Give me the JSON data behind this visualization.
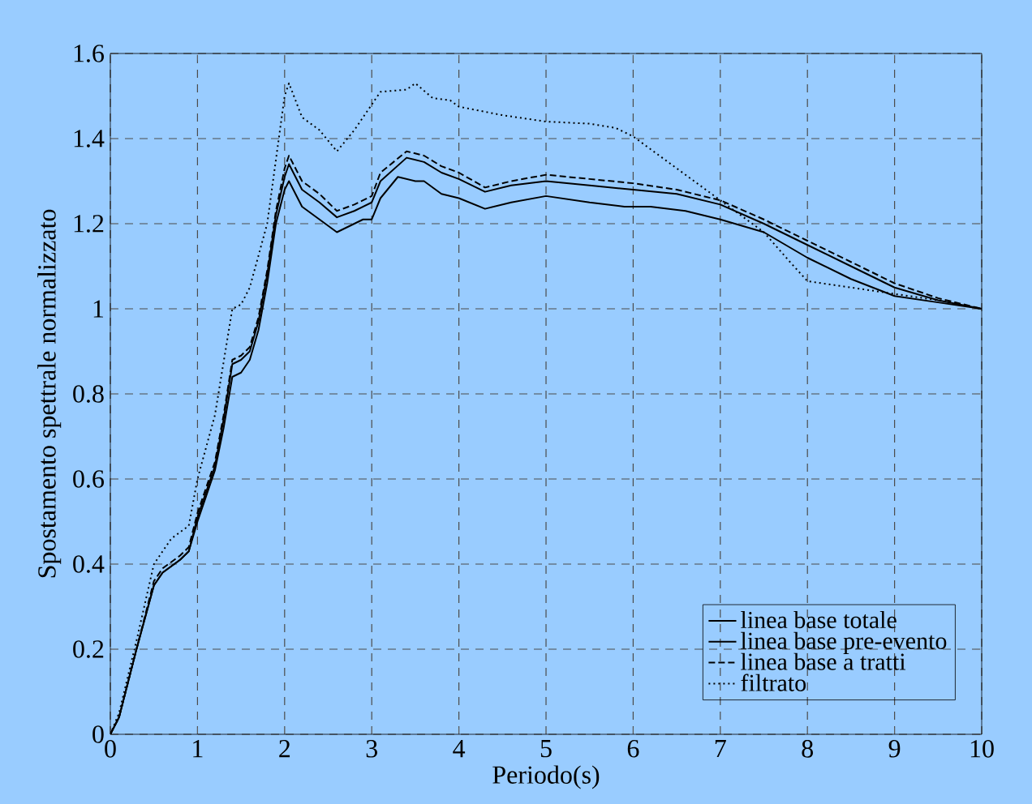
{
  "chart_data": {
    "type": "line",
    "xlabel": "Periodo(s)",
    "ylabel": "Spostamento  spettrale normalizzato",
    "xlim": [
      0,
      10
    ],
    "ylim": [
      0,
      1.6
    ],
    "xticks": [
      0,
      1,
      2,
      3,
      4,
      5,
      6,
      7,
      8,
      9,
      10
    ],
    "yticks": [
      0,
      0.2,
      0.4,
      0.6,
      0.8,
      1,
      1.2,
      1.4,
      1.6
    ],
    "grid": true,
    "legend": "bottom right",
    "marker": "none",
    "series": [
      {
        "name": "linea base totale",
        "color": "#000000",
        "line_style": "solid",
        "x": [
          0,
          0.1,
          0.2,
          0.3,
          0.5,
          0.6,
          0.8,
          0.9,
          1.0,
          1.2,
          1.3,
          1.4,
          1.5,
          1.6,
          1.7,
          1.8,
          1.9,
          2.0,
          2.05,
          2.1,
          2.2,
          2.4,
          2.6,
          2.8,
          3.0,
          3.1,
          3.4,
          3.6,
          3.8,
          4.0,
          4.3,
          4.6,
          5.0,
          5.5,
          6.0,
          6.5,
          7.0,
          7.5,
          8.0,
          8.5,
          9.0,
          9.5,
          10
        ],
        "values": [
          0,
          0.04,
          0.12,
          0.2,
          0.35,
          0.38,
          0.41,
          0.43,
          0.51,
          0.63,
          0.74,
          0.87,
          0.88,
          0.9,
          0.97,
          1.08,
          1.22,
          1.31,
          1.34,
          1.32,
          1.28,
          1.25,
          1.215,
          1.23,
          1.25,
          1.3,
          1.355,
          1.345,
          1.32,
          1.305,
          1.275,
          1.29,
          1.3,
          1.29,
          1.28,
          1.27,
          1.245,
          1.2,
          1.15,
          1.1,
          1.05,
          1.02,
          1.0
        ]
      },
      {
        "name": "linea base pre-evento",
        "color": "#000000",
        "line_style": "solid",
        "x": [
          0,
          0.1,
          0.2,
          0.3,
          0.5,
          0.6,
          0.8,
          0.9,
          1.0,
          1.2,
          1.3,
          1.4,
          1.5,
          1.6,
          1.7,
          1.8,
          1.9,
          2.0,
          2.05,
          2.1,
          2.2,
          2.4,
          2.6,
          2.7,
          2.9,
          3.0,
          3.1,
          3.3,
          3.5,
          3.6,
          3.8,
          4.0,
          4.3,
          4.6,
          5.0,
          5.5,
          5.9,
          6.2,
          6.6,
          7.0,
          7.5,
          8.0,
          8.5,
          9.0,
          9.5,
          10
        ],
        "values": [
          0,
          0.04,
          0.12,
          0.2,
          0.35,
          0.38,
          0.41,
          0.43,
          0.5,
          0.62,
          0.72,
          0.84,
          0.85,
          0.88,
          0.95,
          1.06,
          1.2,
          1.28,
          1.3,
          1.28,
          1.24,
          1.21,
          1.18,
          1.19,
          1.21,
          1.21,
          1.26,
          1.31,
          1.3,
          1.3,
          1.27,
          1.26,
          1.235,
          1.25,
          1.265,
          1.25,
          1.24,
          1.24,
          1.23,
          1.21,
          1.18,
          1.12,
          1.07,
          1.03,
          1.015,
          1.0
        ]
      },
      {
        "name": "linea base a tratti",
        "color": "#000000",
        "line_style": "dashed",
        "x": [
          0,
          0.1,
          0.2,
          0.3,
          0.5,
          0.6,
          0.8,
          0.9,
          1.0,
          1.2,
          1.3,
          1.4,
          1.5,
          1.6,
          1.7,
          1.8,
          1.9,
          2.0,
          2.05,
          2.1,
          2.2,
          2.4,
          2.6,
          2.8,
          3.0,
          3.1,
          3.4,
          3.6,
          3.8,
          4.0,
          4.3,
          4.6,
          5.0,
          5.5,
          6.0,
          6.5,
          7.0,
          7.5,
          8.0,
          8.5,
          9.0,
          9.5,
          10
        ],
        "values": [
          0,
          0.04,
          0.12,
          0.2,
          0.36,
          0.39,
          0.42,
          0.44,
          0.52,
          0.64,
          0.75,
          0.88,
          0.89,
          0.91,
          0.98,
          1.09,
          1.23,
          1.33,
          1.36,
          1.34,
          1.3,
          1.27,
          1.23,
          1.245,
          1.265,
          1.32,
          1.37,
          1.36,
          1.335,
          1.32,
          1.285,
          1.3,
          1.315,
          1.305,
          1.295,
          1.28,
          1.255,
          1.21,
          1.16,
          1.11,
          1.06,
          1.025,
          1.0
        ]
      },
      {
        "name": "filtrato",
        "color": "#000000",
        "line_style": "dotted",
        "x": [
          0,
          0.1,
          0.3,
          0.5,
          0.7,
          0.9,
          1.0,
          1.2,
          1.4,
          1.5,
          1.6,
          1.8,
          1.9,
          2.0,
          2.05,
          2.2,
          2.4,
          2.6,
          2.8,
          3.0,
          3.1,
          3.4,
          3.5,
          3.7,
          3.9,
          4.0,
          4.5,
          5.0,
          5.5,
          5.8,
          6.0,
          6.3,
          6.7,
          7.0,
          7.5,
          7.8,
          8.0,
          8.5,
          9.0,
          9.5,
          10
        ],
        "values": [
          0,
          0.05,
          0.22,
          0.4,
          0.46,
          0.49,
          0.6,
          0.75,
          1.0,
          1.01,
          1.05,
          1.2,
          1.35,
          1.5,
          1.53,
          1.45,
          1.42,
          1.37,
          1.42,
          1.48,
          1.51,
          1.515,
          1.53,
          1.495,
          1.49,
          1.475,
          1.455,
          1.44,
          1.435,
          1.425,
          1.405,
          1.36,
          1.3,
          1.255,
          1.18,
          1.11,
          1.065,
          1.05,
          1.035,
          1.02,
          1.0
        ]
      }
    ]
  }
}
